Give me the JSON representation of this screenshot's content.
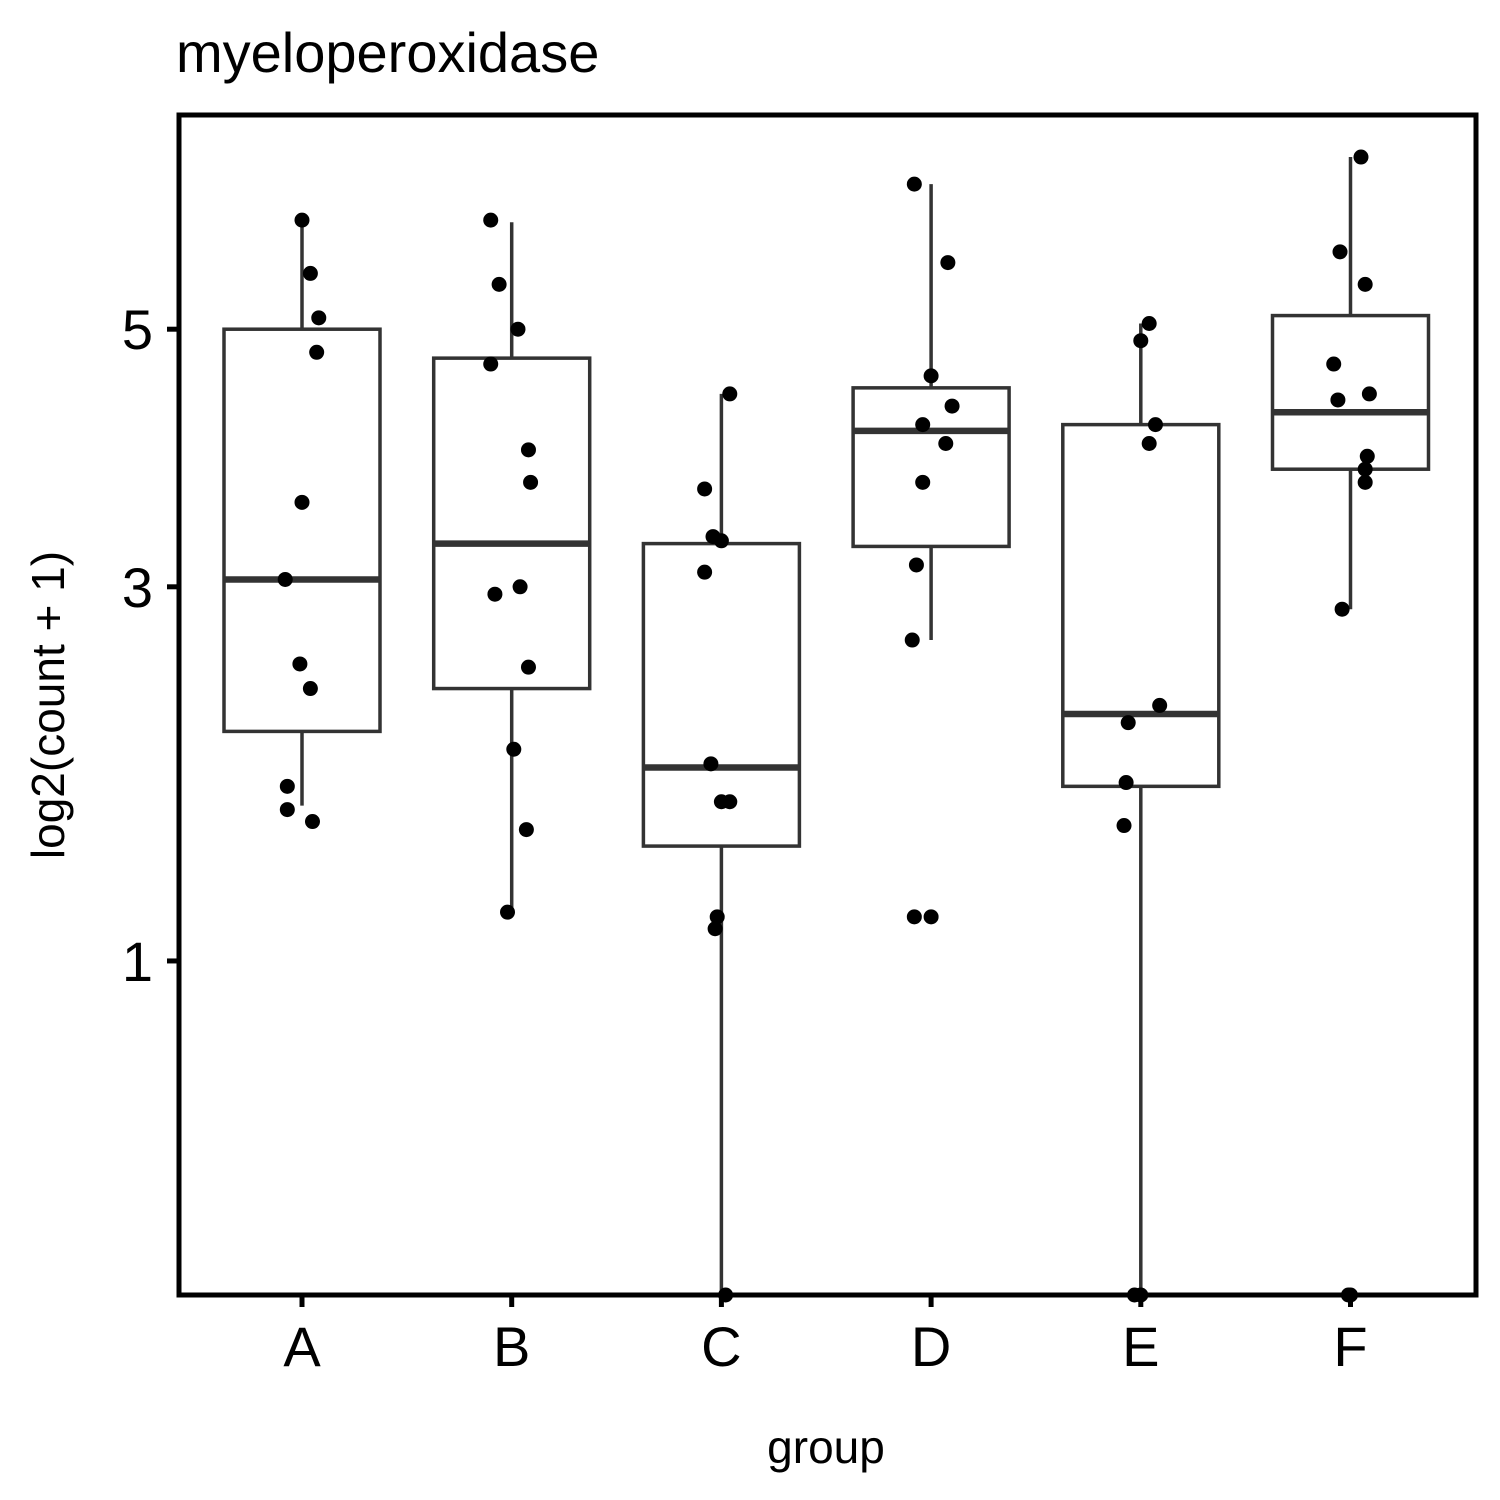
{
  "chart_data": {
    "type": "box",
    "title": "myeloperoxidase",
    "xlabel": "group",
    "ylabel": "log2(count + 1)",
    "y_scale": "sqrt",
    "ylim": [
      0.12,
      7.05
    ],
    "yticks": [
      1,
      3,
      5
    ],
    "grid": false,
    "categories": [
      "A",
      "B",
      "C",
      "D",
      "E",
      "F"
    ],
    "boxes": [
      {
        "group": "A",
        "whisker_low": 1.7,
        "q1": 2.1,
        "median": 3.05,
        "q3": 5.0,
        "whisker_high": 6.0
      },
      {
        "group": "B",
        "whisker_low": 1.2,
        "q1": 2.35,
        "median": 3.3,
        "q3": 4.75,
        "whisker_high": 5.98
      },
      {
        "group": "C",
        "whisker_low": 0.12,
        "q1": 1.5,
        "median": 1.9,
        "q3": 3.3,
        "whisker_high": 4.45
      },
      {
        "group": "D",
        "whisker_low": 2.65,
        "q1": 3.28,
        "median": 4.15,
        "q3": 4.5,
        "whisker_high": 6.35
      },
      {
        "group": "E",
        "whisker_low": 0.12,
        "q1": 1.8,
        "median": 2.2,
        "q3": 4.2,
        "whisker_high": 5.05
      },
      {
        "group": "F",
        "whisker_low": 2.85,
        "q1": 3.85,
        "median": 4.3,
        "q3": 5.12,
        "whisker_high": 6.62
      }
    ],
    "points": [
      {
        "group": "A",
        "dx": 0.0,
        "y": 6.0
      },
      {
        "group": "A",
        "dx": 0.04,
        "y": 5.5
      },
      {
        "group": "A",
        "dx": 0.08,
        "y": 5.1
      },
      {
        "group": "A",
        "dx": 0.07,
        "y": 4.8
      },
      {
        "group": "A",
        "dx": 0.0,
        "y": 3.6
      },
      {
        "group": "A",
        "dx": -0.08,
        "y": 3.05
      },
      {
        "group": "A",
        "dx": -0.01,
        "y": 2.5
      },
      {
        "group": "A",
        "dx": 0.04,
        "y": 2.35
      },
      {
        "group": "A",
        "dx": -0.07,
        "y": 1.8
      },
      {
        "group": "A",
        "dx": -0.07,
        "y": 1.68
      },
      {
        "group": "A",
        "dx": 0.05,
        "y": 1.62
      },
      {
        "group": "B",
        "dx": -0.1,
        "y": 6.0
      },
      {
        "group": "B",
        "dx": -0.06,
        "y": 5.4
      },
      {
        "group": "B",
        "dx": 0.03,
        "y": 5.0
      },
      {
        "group": "B",
        "dx": -0.1,
        "y": 4.7
      },
      {
        "group": "B",
        "dx": 0.08,
        "y": 4.0
      },
      {
        "group": "B",
        "dx": 0.09,
        "y": 3.75
      },
      {
        "group": "B",
        "dx": -0.08,
        "y": 2.95
      },
      {
        "group": "B",
        "dx": 0.04,
        "y": 3.0
      },
      {
        "group": "B",
        "dx": 0.08,
        "y": 2.48
      },
      {
        "group": "B",
        "dx": 0.01,
        "y": 2.0
      },
      {
        "group": "B",
        "dx": 0.07,
        "y": 1.58
      },
      {
        "group": "B",
        "dx": -0.02,
        "y": 1.2
      },
      {
        "group": "C",
        "dx": 0.04,
        "y": 4.45
      },
      {
        "group": "C",
        "dx": -0.08,
        "y": 3.7
      },
      {
        "group": "C",
        "dx": -0.04,
        "y": 3.35
      },
      {
        "group": "C",
        "dx": 0.0,
        "y": 3.32
      },
      {
        "group": "C",
        "dx": -0.08,
        "y": 3.1
      },
      {
        "group": "C",
        "dx": -0.05,
        "y": 1.92
      },
      {
        "group": "C",
        "dx": 0.0,
        "y": 1.72
      },
      {
        "group": "C",
        "dx": 0.04,
        "y": 1.72
      },
      {
        "group": "C",
        "dx": -0.02,
        "y": 1.18
      },
      {
        "group": "C",
        "dx": -0.03,
        "y": 1.13
      },
      {
        "group": "C",
        "dx": 0.02,
        "y": 0.12
      },
      {
        "group": "D",
        "dx": -0.08,
        "y": 6.35
      },
      {
        "group": "D",
        "dx": 0.08,
        "y": 5.6
      },
      {
        "group": "D",
        "dx": 0.0,
        "y": 4.6
      },
      {
        "group": "D",
        "dx": 0.1,
        "y": 4.35
      },
      {
        "group": "D",
        "dx": -0.04,
        "y": 4.2
      },
      {
        "group": "D",
        "dx": 0.07,
        "y": 4.05
      },
      {
        "group": "D",
        "dx": -0.04,
        "y": 3.75
      },
      {
        "group": "D",
        "dx": -0.07,
        "y": 3.15
      },
      {
        "group": "D",
        "dx": -0.09,
        "y": 2.65
      },
      {
        "group": "D",
        "dx": -0.08,
        "y": 1.18
      },
      {
        "group": "D",
        "dx": 0.0,
        "y": 1.18
      },
      {
        "group": "E",
        "dx": 0.04,
        "y": 5.05
      },
      {
        "group": "E",
        "dx": 0.0,
        "y": 4.9
      },
      {
        "group": "E",
        "dx": 0.07,
        "y": 4.2
      },
      {
        "group": "E",
        "dx": 0.04,
        "y": 4.05
      },
      {
        "group": "E",
        "dx": 0.09,
        "y": 2.25
      },
      {
        "group": "E",
        "dx": -0.06,
        "y": 2.15
      },
      {
        "group": "E",
        "dx": -0.07,
        "y": 1.82
      },
      {
        "group": "E",
        "dx": -0.08,
        "y": 1.6
      },
      {
        "group": "E",
        "dx": -0.03,
        "y": 0.12
      },
      {
        "group": "E",
        "dx": 0.0,
        "y": 0.12
      },
      {
        "group": "F",
        "dx": 0.05,
        "y": 6.62
      },
      {
        "group": "F",
        "dx": -0.05,
        "y": 5.7
      },
      {
        "group": "F",
        "dx": 0.07,
        "y": 5.4
      },
      {
        "group": "F",
        "dx": -0.08,
        "y": 4.7
      },
      {
        "group": "F",
        "dx": 0.09,
        "y": 4.45
      },
      {
        "group": "F",
        "dx": -0.06,
        "y": 4.4
      },
      {
        "group": "F",
        "dx": 0.08,
        "y": 3.95
      },
      {
        "group": "F",
        "dx": 0.07,
        "y": 3.85
      },
      {
        "group": "F",
        "dx": 0.07,
        "y": 3.75
      },
      {
        "group": "F",
        "dx": -0.04,
        "y": 2.85
      },
      {
        "group": "F",
        "dx": -0.01,
        "y": 0.12
      },
      {
        "group": "F",
        "dx": 0.0,
        "y": 0.12
      }
    ],
    "colors": {
      "box": "#333333",
      "point": "#000000",
      "frame": "#000000"
    }
  }
}
